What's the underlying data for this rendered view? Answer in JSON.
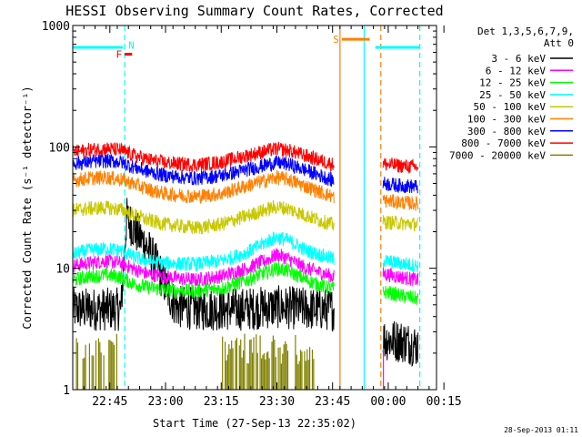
{
  "chart_data": {
    "type": "line",
    "title": "HESSI Observing Summary Count Rates, Corrected",
    "ylabel": "Corrected Count Rate (s⁻¹ detector⁻¹)",
    "xlabel": "Start Time (27-Sep-13 22:35:02)",
    "y_scale": "log",
    "ylim": [
      1,
      1000
    ],
    "y_ticks": [
      {
        "value": 1,
        "label": "1"
      },
      {
        "value": 10,
        "label": "10"
      },
      {
        "value": 100,
        "label": "100"
      },
      {
        "value": 1000,
        "label": "1000"
      }
    ],
    "x_range_minutes": [
      0,
      98
    ],
    "x_ticks": [
      {
        "value": 10,
        "label": "22:45"
      },
      {
        "value": 25,
        "label": "23:00"
      },
      {
        "value": 40,
        "label": "23:15"
      },
      {
        "value": 55,
        "label": "23:30"
      },
      {
        "value": 70,
        "label": "23:45"
      },
      {
        "value": 85,
        "label": "00:00"
      },
      {
        "value": 100,
        "label": "00:15"
      }
    ],
    "legend": {
      "placement": "right",
      "header_line1": "Det 1,3,5,6,7,9,",
      "header_line2": "Att 0"
    },
    "gaps_minutes": [
      [
        70.5,
        83.5
      ]
    ],
    "series": [
      {
        "name": "3 - 6 keV",
        "color": "#000000",
        "points": [
          [
            0,
            4.6
          ],
          [
            5,
            4.6
          ],
          [
            10,
            4.6
          ],
          [
            13,
            4.6
          ],
          [
            14.5,
            26
          ],
          [
            17,
            20
          ],
          [
            20,
            15
          ],
          [
            23,
            10
          ],
          [
            26,
            6
          ],
          [
            28,
            4.8
          ],
          [
            35,
            4.6
          ],
          [
            45,
            4.6
          ],
          [
            55,
            4.8
          ],
          [
            60,
            4.7
          ],
          [
            65,
            4.6
          ],
          [
            70,
            4.6
          ],
          [
            84,
            2.6
          ],
          [
            89,
            2.5
          ],
          [
            93,
            2.3
          ]
        ]
      },
      {
        "name": "6 - 12 keV",
        "color": "#ff00ff",
        "points": [
          [
            0,
            10.5
          ],
          [
            4,
            11
          ],
          [
            9,
            11.5
          ],
          [
            13,
            11
          ],
          [
            16,
            10
          ],
          [
            20,
            9
          ],
          [
            25,
            8.5
          ],
          [
            33,
            8
          ],
          [
            40,
            8.6
          ],
          [
            47,
            10
          ],
          [
            53,
            12
          ],
          [
            55,
            13
          ],
          [
            58,
            12
          ],
          [
            63,
            10
          ],
          [
            68,
            9
          ],
          [
            70,
            8.5
          ],
          [
            84,
            9
          ],
          [
            88,
            8.5
          ],
          [
            93,
            8
          ]
        ]
      },
      {
        "name": "12 - 25 keV",
        "color": "#00ff00",
        "points": [
          [
            0,
            8
          ],
          [
            4,
            8.5
          ],
          [
            9,
            8.8
          ],
          [
            13,
            8.5
          ],
          [
            16,
            7.5
          ],
          [
            20,
            7
          ],
          [
            25,
            6.6
          ],
          [
            33,
            6.5
          ],
          [
            40,
            6.8
          ],
          [
            47,
            8
          ],
          [
            53,
            9.5
          ],
          [
            55,
            10
          ],
          [
            58,
            9.5
          ],
          [
            63,
            8
          ],
          [
            68,
            7
          ],
          [
            70,
            6.8
          ],
          [
            84,
            6.4
          ],
          [
            88,
            6
          ],
          [
            93,
            5.6
          ]
        ]
      },
      {
        "name": "25 - 50 keV",
        "color": "#00ffff",
        "points": [
          [
            0,
            13
          ],
          [
            4,
            14
          ],
          [
            9,
            14.5
          ],
          [
            13,
            14
          ],
          [
            16,
            12.5
          ],
          [
            20,
            11.5
          ],
          [
            25,
            11
          ],
          [
            33,
            10.8
          ],
          [
            40,
            11.5
          ],
          [
            47,
            13.5
          ],
          [
            53,
            17
          ],
          [
            55,
            18
          ],
          [
            58,
            17
          ],
          [
            63,
            14
          ],
          [
            68,
            12.5
          ],
          [
            70,
            12
          ],
          [
            84,
            11.5
          ],
          [
            88,
            11
          ],
          [
            93,
            10.5
          ]
        ]
      },
      {
        "name": "50 - 100 keV",
        "color": "#c8c800",
        "points": [
          [
            0,
            30
          ],
          [
            4,
            31
          ],
          [
            9,
            31.5
          ],
          [
            13,
            30.5
          ],
          [
            16,
            28
          ],
          [
            20,
            25
          ],
          [
            25,
            23
          ],
          [
            33,
            21.5
          ],
          [
            40,
            23
          ],
          [
            47,
            27
          ],
          [
            53,
            31
          ],
          [
            55,
            32
          ],
          [
            58,
            31
          ],
          [
            63,
            27
          ],
          [
            68,
            24
          ],
          [
            70,
            23
          ],
          [
            84,
            24
          ],
          [
            88,
            23.5
          ],
          [
            93,
            23
          ]
        ]
      },
      {
        "name": "100 - 300 keV",
        "color": "#ff8000",
        "points": [
          [
            0,
            53
          ],
          [
            4,
            55
          ],
          [
            9,
            56
          ],
          [
            13,
            54
          ],
          [
            16,
            50
          ],
          [
            20,
            45
          ],
          [
            25,
            41
          ],
          [
            33,
            39
          ],
          [
            40,
            41
          ],
          [
            47,
            48
          ],
          [
            53,
            54
          ],
          [
            55,
            56
          ],
          [
            58,
            54
          ],
          [
            63,
            47
          ],
          [
            68,
            41
          ],
          [
            70,
            39
          ],
          [
            84,
            36
          ],
          [
            88,
            35
          ],
          [
            93,
            34
          ]
        ]
      },
      {
        "name": "300 - 800 keV",
        "color": "#0000ff",
        "points": [
          [
            0,
            73
          ],
          [
            4,
            75
          ],
          [
            9,
            77
          ],
          [
            13,
            75
          ],
          [
            16,
            69
          ],
          [
            20,
            63
          ],
          [
            25,
            58
          ],
          [
            33,
            55
          ],
          [
            40,
            58
          ],
          [
            47,
            65
          ],
          [
            53,
            72
          ],
          [
            55,
            74
          ],
          [
            58,
            72
          ],
          [
            63,
            64
          ],
          [
            68,
            56
          ],
          [
            70,
            53
          ],
          [
            84,
            50
          ],
          [
            88,
            48
          ],
          [
            93,
            47
          ]
        ]
      },
      {
        "name": "800 - 7000 keV",
        "color": "#ff0000",
        "points": [
          [
            0,
            90
          ],
          [
            4,
            94
          ],
          [
            9,
            97
          ],
          [
            13,
            94
          ],
          [
            16,
            86
          ],
          [
            20,
            79
          ],
          [
            25,
            74
          ],
          [
            33,
            71
          ],
          [
            40,
            75
          ],
          [
            47,
            85
          ],
          [
            53,
            94
          ],
          [
            55,
            96
          ],
          [
            58,
            94
          ],
          [
            63,
            84
          ],
          [
            68,
            75
          ],
          [
            70,
            72
          ],
          [
            84,
            72
          ],
          [
            88,
            70
          ],
          [
            93,
            68
          ]
        ]
      },
      {
        "name": "7000 - 20000 keV",
        "color": "#808000",
        "points": []
      }
    ],
    "attenuator_marker": {
      "label": "Att 0",
      "color": "#ff00ff"
    },
    "flag_bars": [
      {
        "label": "",
        "color": "#00ffff",
        "y_value": 660,
        "x_start": 0,
        "x_end": 13.5
      },
      {
        "label": "",
        "color": "#00ffff",
        "y_value": 660,
        "x_start": 81.5,
        "x_end": 93.5
      },
      {
        "label": "F",
        "color": "#ff0000",
        "y_value": 580,
        "x_start": 14,
        "x_end": 16
      },
      {
        "label": "N",
        "color": "#00ffff",
        "y_value": 690,
        "x_start": 14,
        "x_end": 14
      },
      {
        "label": "S",
        "color": "#ff8000",
        "y_value": 770,
        "x_start": 72.5,
        "x_end": 80
      }
    ],
    "vertical_lines": [
      {
        "x": 14,
        "color": "#00ffff",
        "style": "dashed"
      },
      {
        "x": 72,
        "color": "#ff8000",
        "style": "solid"
      },
      {
        "x": 78.5,
        "color": "#00ffff",
        "style": "solid"
      },
      {
        "x": 83,
        "color": "#ff8000",
        "style": "dashed"
      },
      {
        "x": 93.5,
        "color": "#00ffff",
        "style": "dashed"
      }
    ],
    "timestamp": "28-Sep-2013 01:11"
  }
}
